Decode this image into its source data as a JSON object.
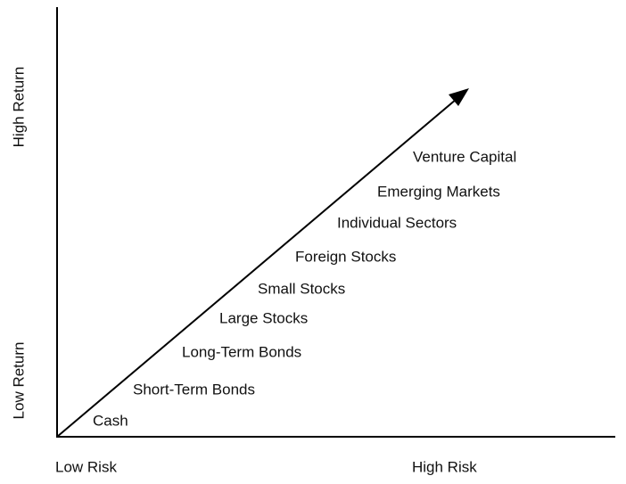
{
  "y_axis": {
    "high": "High Return",
    "low": "Low Return"
  },
  "x_axis": {
    "low": "Low Risk",
    "high": "High Risk"
  },
  "assets": [
    "Cash",
    "Short-Term Bonds",
    "Long-Term Bonds",
    "Large Stocks",
    "Small Stocks",
    "Foreign Stocks",
    "Individual Sectors",
    "Emerging Markets",
    "Venture Capital"
  ]
}
